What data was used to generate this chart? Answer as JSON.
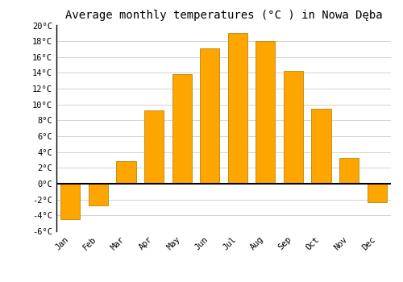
{
  "title": "Average monthly temperatures (°C ) in Nowa Dęba",
  "months": [
    "Jan",
    "Feb",
    "Mar",
    "Apr",
    "May",
    "Jun",
    "Jul",
    "Aug",
    "Sep",
    "Oct",
    "Nov",
    "Dec"
  ],
  "values": [
    -4.5,
    -2.7,
    2.9,
    9.3,
    13.8,
    17.1,
    19.0,
    18.0,
    14.2,
    9.5,
    3.3,
    -2.3
  ],
  "bar_color_face": "#FFA500",
  "bar_color_edge": "#B8860B",
  "ylim": [
    -6,
    20
  ],
  "yticks": [
    -6,
    -4,
    -2,
    0,
    2,
    4,
    6,
    8,
    10,
    12,
    14,
    16,
    18,
    20
  ],
  "ytick_labels": [
    "-6°C",
    "-4°C",
    "-2°C",
    "0°C",
    "2°C",
    "4°C",
    "6°C",
    "8°C",
    "10°C",
    "12°C",
    "14°C",
    "16°C",
    "18°C",
    "20°C"
  ],
  "background_color": "#ffffff",
  "grid_color": "#cccccc",
  "title_fontsize": 10,
  "tick_fontsize": 7.5,
  "bar_width": 0.7
}
